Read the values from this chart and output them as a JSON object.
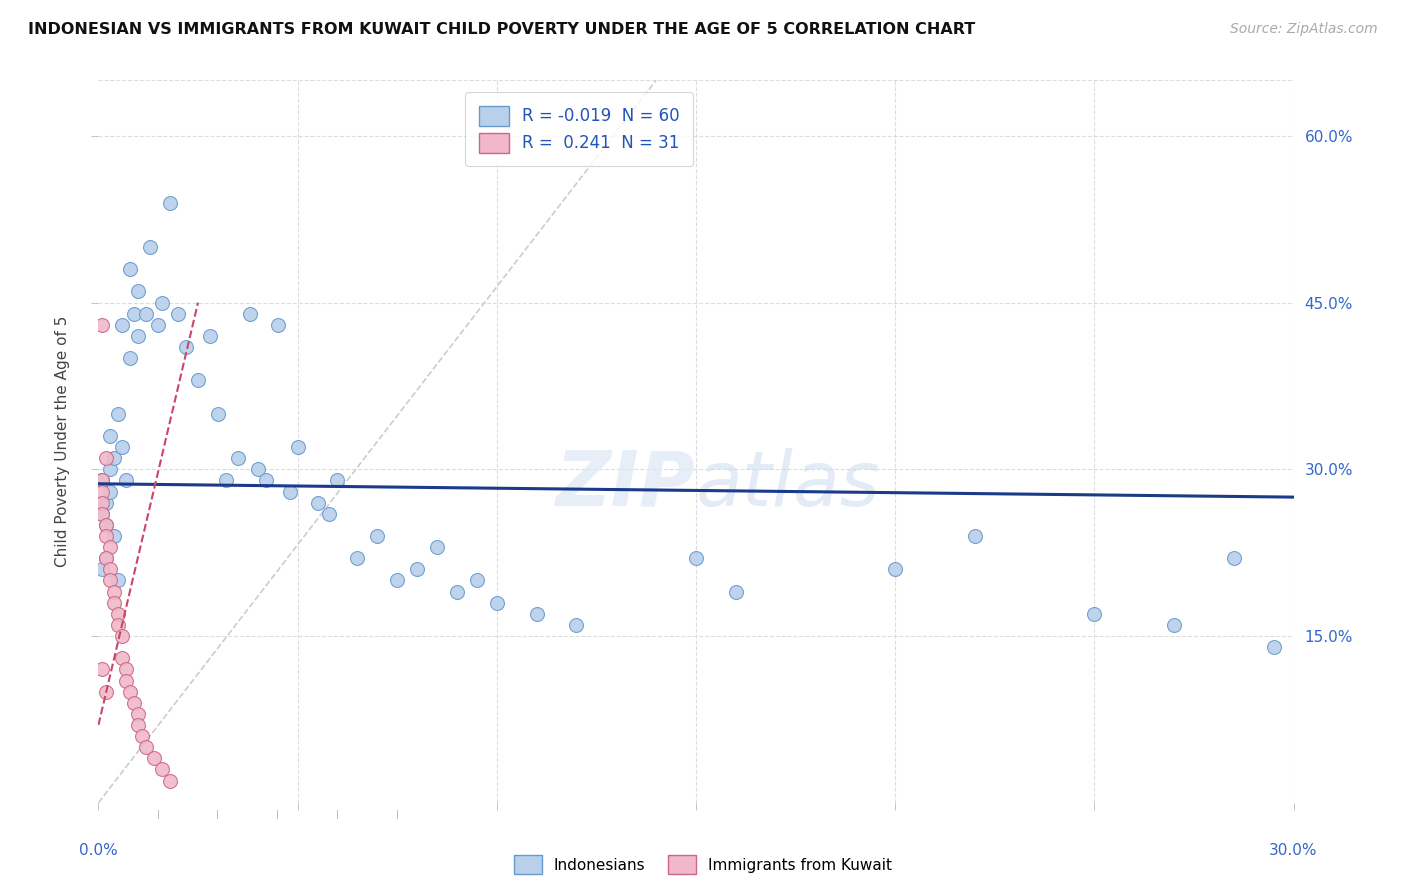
{
  "title": "INDONESIAN VS IMMIGRANTS FROM KUWAIT CHILD POVERTY UNDER THE AGE OF 5 CORRELATION CHART",
  "source": "Source: ZipAtlas.com",
  "ylabel": "Child Poverty Under the Age of 5",
  "xlim": [
    0.0,
    0.3
  ],
  "ylim": [
    0.0,
    0.65
  ],
  "ytick_positions": [
    0.15,
    0.3,
    0.45,
    0.6
  ],
  "ytick_labels": [
    "15.0%",
    "30.0%",
    "45.0%",
    "60.0%"
  ],
  "xtick_positions": [
    0.0,
    0.05,
    0.1,
    0.15,
    0.2,
    0.25,
    0.3
  ],
  "indonesian_R": -0.019,
  "indonesian_N": 60,
  "kuwait_R": 0.241,
  "kuwait_N": 31,
  "blue_face": "#b8d0ea",
  "blue_edge": "#6699cc",
  "pink_face": "#f0b8c8",
  "pink_edge": "#cc6688",
  "reg_blue": "#1a3a8a",
  "reg_pink": "#cc4466",
  "grid_color": "#dddddd",
  "ref_line_color": "#cccccc",
  "watermark_color": "#dde8f5",
  "indonesian_x": [
    0.001,
    0.002,
    0.001,
    0.003,
    0.002,
    0.004,
    0.003,
    0.002,
    0.001,
    0.005,
    0.004,
    0.003,
    0.006,
    0.007,
    0.005,
    0.008,
    0.006,
    0.009,
    0.01,
    0.008,
    0.012,
    0.01,
    0.015,
    0.013,
    0.018,
    0.02,
    0.016,
    0.022,
    0.025,
    0.028,
    0.03,
    0.035,
    0.032,
    0.04,
    0.038,
    0.045,
    0.042,
    0.05,
    0.048,
    0.055,
    0.06,
    0.058,
    0.065,
    0.07,
    0.075,
    0.08,
    0.09,
    0.085,
    0.1,
    0.095,
    0.11,
    0.12,
    0.15,
    0.16,
    0.2,
    0.22,
    0.25,
    0.27,
    0.285,
    0.295
  ],
  "indonesian_y": [
    0.29,
    0.27,
    0.26,
    0.3,
    0.25,
    0.24,
    0.28,
    0.22,
    0.21,
    0.2,
    0.31,
    0.33,
    0.32,
    0.29,
    0.35,
    0.4,
    0.43,
    0.44,
    0.46,
    0.48,
    0.44,
    0.42,
    0.43,
    0.5,
    0.54,
    0.44,
    0.45,
    0.41,
    0.38,
    0.42,
    0.35,
    0.31,
    0.29,
    0.3,
    0.44,
    0.43,
    0.29,
    0.32,
    0.28,
    0.27,
    0.29,
    0.26,
    0.22,
    0.24,
    0.2,
    0.21,
    0.19,
    0.23,
    0.18,
    0.2,
    0.17,
    0.16,
    0.22,
    0.19,
    0.21,
    0.24,
    0.17,
    0.16,
    0.22,
    0.14
  ],
  "kuwait_x": [
    0.001,
    0.001,
    0.001,
    0.001,
    0.002,
    0.001,
    0.002,
    0.002,
    0.003,
    0.002,
    0.003,
    0.003,
    0.004,
    0.004,
    0.005,
    0.005,
    0.006,
    0.006,
    0.007,
    0.007,
    0.008,
    0.009,
    0.01,
    0.01,
    0.011,
    0.012,
    0.014,
    0.016,
    0.018,
    0.001,
    0.002
  ],
  "kuwait_y": [
    0.43,
    0.29,
    0.28,
    0.27,
    0.31,
    0.26,
    0.25,
    0.24,
    0.23,
    0.22,
    0.21,
    0.2,
    0.19,
    0.18,
    0.17,
    0.16,
    0.15,
    0.13,
    0.12,
    0.11,
    0.1,
    0.09,
    0.08,
    0.07,
    0.06,
    0.05,
    0.04,
    0.03,
    0.02,
    0.12,
    0.1
  ]
}
